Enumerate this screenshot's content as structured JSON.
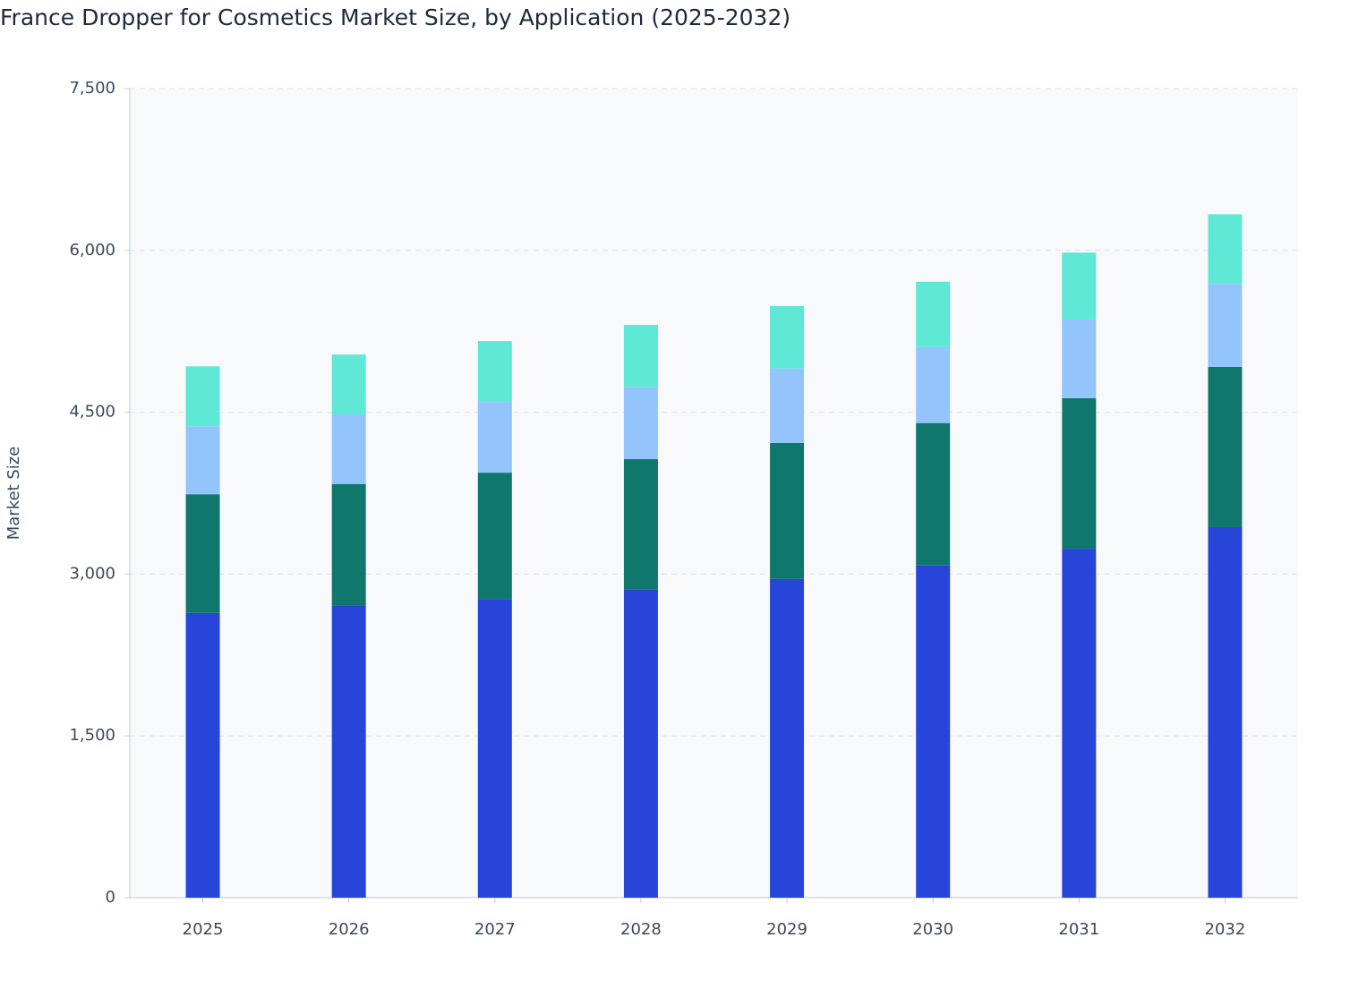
{
  "chart_data": {
    "type": "stacked-bar",
    "title": "France Dropper for Cosmetics Market Size, by Application (2025-2032)",
    "y_label": "Market Size",
    "categories": [
      "2025",
      "2026",
      "2027",
      "2028",
      "2029",
      "2030",
      "2031",
      "2032"
    ],
    "series": [
      {
        "color": "#2746d9",
        "values": [
          2640,
          2705,
          2770,
          2855,
          2955,
          3080,
          3235,
          3435
        ]
      },
      {
        "color": "#10776c",
        "values": [
          1100,
          1130,
          1170,
          1210,
          1260,
          1320,
          1395,
          1485
        ]
      },
      {
        "color": "#93c4fb",
        "values": [
          630,
          645,
          655,
          670,
          690,
          705,
          730,
          770
        ]
      },
      {
        "color": "#5fe8d6",
        "values": [
          555,
          555,
          565,
          575,
          580,
          605,
          620,
          645
        ]
      }
    ],
    "ylim": [
      0,
      7500
    ],
    "yticks": [
      0,
      {
        "value": 1500,
        "label": "1,500"
      },
      {
        "value": 3000,
        "label": "3,000"
      },
      {
        "value": 4500,
        "label": "4,500"
      },
      {
        "value": 6000,
        "label": "6,000"
      },
      {
        "value": 7500,
        "label": "7,500"
      }
    ],
    "grid": true
  }
}
